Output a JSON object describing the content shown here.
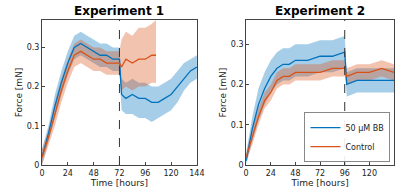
{
  "chart_data": [
    {
      "type": "line",
      "title": "Experiment 1",
      "x_label": "Time [hours]",
      "y_label": "Force [mN]",
      "xlim": [
        0,
        144
      ],
      "xticks": [
        0,
        24,
        48,
        72,
        96,
        120,
        144
      ],
      "ylim": [
        0,
        0.37
      ],
      "yticks": [
        0,
        0.1,
        0.2,
        0.3
      ],
      "vline": 72,
      "series": [
        {
          "name": "50 μM BB",
          "color": "#0072BD",
          "line_style": "solid",
          "x": [
            0,
            6,
            12,
            18,
            24,
            30,
            36,
            42,
            48,
            54,
            60,
            66,
            72,
            74,
            78,
            84,
            90,
            96,
            102,
            108,
            114,
            120,
            126,
            132,
            138,
            144
          ],
          "values": [
            0.02,
            0.08,
            0.15,
            0.21,
            0.26,
            0.3,
            0.31,
            0.3,
            0.29,
            0.28,
            0.28,
            0.27,
            0.27,
            0.18,
            0.17,
            0.18,
            0.17,
            0.17,
            0.16,
            0.16,
            0.17,
            0.18,
            0.2,
            0.22,
            0.24,
            0.25
          ],
          "lower": [
            0.0,
            0.06,
            0.12,
            0.18,
            0.23,
            0.27,
            0.28,
            0.27,
            0.26,
            0.25,
            0.25,
            0.24,
            0.24,
            0.14,
            0.13,
            0.13,
            0.12,
            0.12,
            0.11,
            0.12,
            0.13,
            0.14,
            0.16,
            0.19,
            0.21,
            0.22
          ],
          "upper": [
            0.04,
            0.1,
            0.18,
            0.24,
            0.29,
            0.33,
            0.34,
            0.33,
            0.32,
            0.31,
            0.31,
            0.3,
            0.3,
            0.22,
            0.21,
            0.22,
            0.21,
            0.21,
            0.2,
            0.2,
            0.21,
            0.22,
            0.24,
            0.26,
            0.27,
            0.28
          ]
        },
        {
          "name": "Control",
          "color": "#D95319",
          "line_style": "solid",
          "x": [
            0,
            6,
            12,
            18,
            24,
            30,
            36,
            42,
            48,
            54,
            60,
            66,
            72,
            74,
            78,
            84,
            90,
            96,
            102,
            106
          ],
          "values": [
            0.02,
            0.07,
            0.13,
            0.19,
            0.24,
            0.28,
            0.29,
            0.28,
            0.27,
            0.27,
            0.26,
            0.26,
            0.26,
            0.25,
            0.27,
            0.26,
            0.27,
            0.27,
            0.28,
            0.28
          ],
          "lower": [
            0.0,
            0.05,
            0.1,
            0.16,
            0.21,
            0.25,
            0.26,
            0.25,
            0.24,
            0.24,
            0.23,
            0.23,
            0.23,
            0.19,
            0.2,
            0.19,
            0.2,
            0.2,
            0.21,
            0.21
          ],
          "upper": [
            0.04,
            0.09,
            0.16,
            0.22,
            0.27,
            0.31,
            0.32,
            0.31,
            0.3,
            0.3,
            0.29,
            0.29,
            0.29,
            0.32,
            0.34,
            0.33,
            0.35,
            0.35,
            0.36,
            0.37
          ]
        }
      ]
    },
    {
      "type": "line",
      "title": "Experiment 2",
      "x_label": "Time [hours]",
      "y_label": "Force [mN]",
      "xlim": [
        0,
        144
      ],
      "xticks": [
        0,
        24,
        48,
        72,
        96,
        120,
        144
      ],
      "ylim": [
        0,
        0.36
      ],
      "yticks": [
        0,
        0.1,
        0.2,
        0.3
      ],
      "vline": 96,
      "legend": "lower right",
      "series": [
        {
          "name": "50 μM BB",
          "color": "#0072BD",
          "line_style": "solid",
          "x": [
            0,
            6,
            12,
            18,
            24,
            30,
            36,
            42,
            48,
            60,
            72,
            84,
            96,
            98,
            108,
            120,
            132,
            144
          ],
          "values": [
            0.01,
            0.09,
            0.15,
            0.19,
            0.22,
            0.24,
            0.25,
            0.25,
            0.26,
            0.26,
            0.27,
            0.27,
            0.28,
            0.2,
            0.21,
            0.21,
            0.21,
            0.21
          ],
          "lower": [
            0.0,
            0.06,
            0.11,
            0.15,
            0.18,
            0.2,
            0.21,
            0.21,
            0.22,
            0.22,
            0.23,
            0.23,
            0.24,
            0.17,
            0.18,
            0.18,
            0.18,
            0.18
          ],
          "upper": [
            0.03,
            0.12,
            0.19,
            0.23,
            0.26,
            0.28,
            0.29,
            0.29,
            0.3,
            0.3,
            0.31,
            0.31,
            0.32,
            0.23,
            0.24,
            0.24,
            0.24,
            0.24
          ]
        },
        {
          "name": "Control",
          "color": "#D95319",
          "line_style": "solid",
          "x": [
            0,
            6,
            12,
            18,
            24,
            30,
            36,
            42,
            48,
            60,
            72,
            84,
            96,
            98,
            108,
            120,
            132,
            144
          ],
          "values": [
            0.02,
            0.07,
            0.12,
            0.16,
            0.18,
            0.21,
            0.22,
            0.22,
            0.23,
            0.23,
            0.23,
            0.24,
            0.24,
            0.22,
            0.23,
            0.23,
            0.24,
            0.23
          ],
          "lower": [
            0.01,
            0.05,
            0.1,
            0.14,
            0.16,
            0.19,
            0.2,
            0.2,
            0.21,
            0.21,
            0.21,
            0.22,
            0.22,
            0.2,
            0.21,
            0.21,
            0.22,
            0.21
          ],
          "upper": [
            0.03,
            0.09,
            0.14,
            0.18,
            0.2,
            0.23,
            0.24,
            0.24,
            0.25,
            0.25,
            0.25,
            0.26,
            0.26,
            0.24,
            0.25,
            0.25,
            0.26,
            0.25
          ]
        }
      ]
    }
  ]
}
